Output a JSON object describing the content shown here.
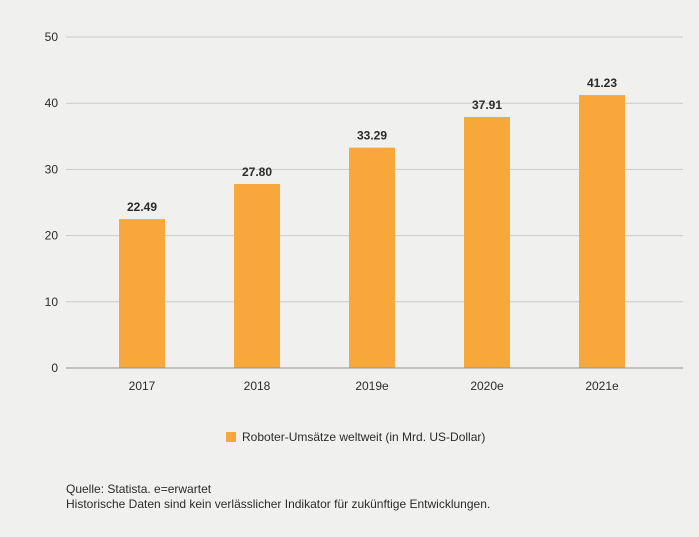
{
  "chart_data": {
    "type": "bar",
    "categories": [
      "2017",
      "2018",
      "2019e",
      "2020e",
      "2021e"
    ],
    "values": [
      22.49,
      27.8,
      33.29,
      37.91,
      41.23
    ],
    "value_labels": [
      "22.49",
      "27.80",
      "33.29",
      "37.91",
      "41.23"
    ],
    "ylim": [
      0,
      50
    ],
    "yticks": [
      "0",
      "10",
      "20",
      "30",
      "40",
      "50"
    ],
    "grid": true,
    "legend": {
      "placement": "bottom-center",
      "entries": [
        "Roboter-Umsätze weltweit (in Mrd. US-Dollar)"
      ]
    },
    "colors": {
      "bar": "#f8a83a",
      "grid": "#c9c9c9",
      "axis": "#8f8f8f"
    }
  },
  "footer": {
    "source": "Quelle: Statista. e=erwartet",
    "disclaimer": "Historische Daten sind kein verlässlicher Indikator für zukünftige Entwicklungen."
  }
}
